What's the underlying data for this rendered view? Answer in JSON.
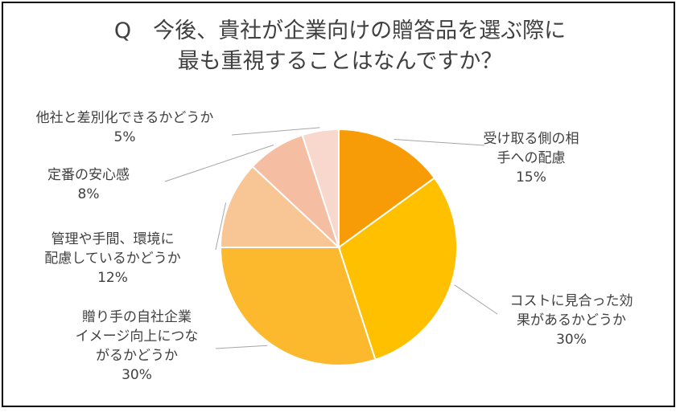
{
  "title": {
    "line1": "Q　今後、貴社が企業向けの贈答品を選ぶ際に",
    "line2": "最も重視することはなんですか？"
  },
  "chart_data": {
    "type": "pie",
    "title": "Q　今後、貴社が企業向けの贈答品を選ぶ際に最も重視することはなんですか？",
    "unit": "%",
    "slices": [
      {
        "label_lines": [
          "受け取る側の相",
          "手への配慮"
        ],
        "pct_label": "15%",
        "value": 15,
        "color": "#f79c06"
      },
      {
        "label_lines": [
          "コストに見合った効",
          "果があるかどうか"
        ],
        "pct_label": "30%",
        "value": 30,
        "color": "#ffc000"
      },
      {
        "label_lines": [
          "贈り手の自社企業",
          "イメージ向上につな",
          "がるかどうか"
        ],
        "pct_label": "30%",
        "value": 30,
        "color": "#fdb92d"
      },
      {
        "label_lines": [
          "管理や手間、環境に",
          "配慮しているかどうか"
        ],
        "pct_label": "12%",
        "value": 12,
        "color": "#f8c594"
      },
      {
        "label_lines": [
          "定番の安心感"
        ],
        "pct_label": "8%",
        "value": 8,
        "color": "#f5bea3"
      },
      {
        "label_lines": [
          "他社と差別化できるかどうか"
        ],
        "pct_label": "5%",
        "value": 5,
        "color": "#f8d8cc"
      }
    ]
  }
}
